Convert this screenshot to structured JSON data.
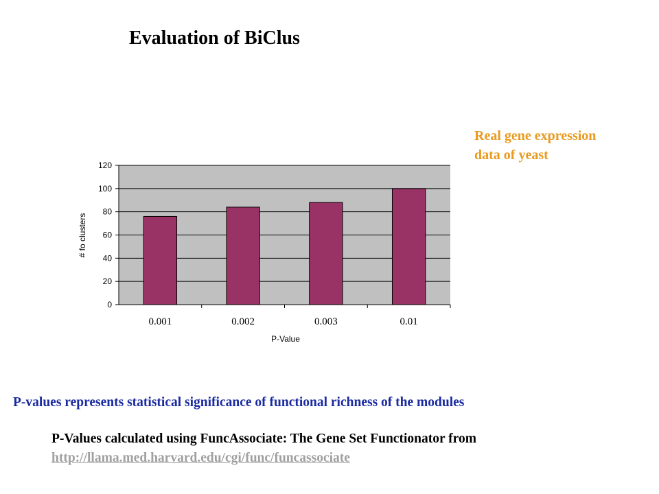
{
  "page": {
    "title": "Evaluation of BiClus",
    "side_note_line1": "Real gene expression",
    "side_note_line2": "data of yeast",
    "caption": "P-values represents statistical significance of functional richness of the modules",
    "source_text": "P-Values calculated using FuncAssociate: The Gene Set Functionator from",
    "source_link": "http://llama.med.harvard.edu/cgi/func/funcassociate"
  },
  "colors": {
    "bar": "#993366",
    "plot_area": "#c0c0c0",
    "side_note": "#e89a1e",
    "caption": "#1a2aa0",
    "link": "#a0a0a0"
  },
  "chart_data": {
    "type": "bar",
    "categories": [
      "0.001",
      "0.002",
      "0.003",
      "0.01"
    ],
    "values": [
      76,
      84,
      88,
      100
    ],
    "title": "",
    "xlabel": "P-Value",
    "ylabel": "# fo clusters",
    "ylim": [
      0,
      120
    ],
    "yticks": [
      0,
      20,
      40,
      60,
      80,
      100,
      120
    ],
    "grid": true,
    "legend": "none"
  }
}
